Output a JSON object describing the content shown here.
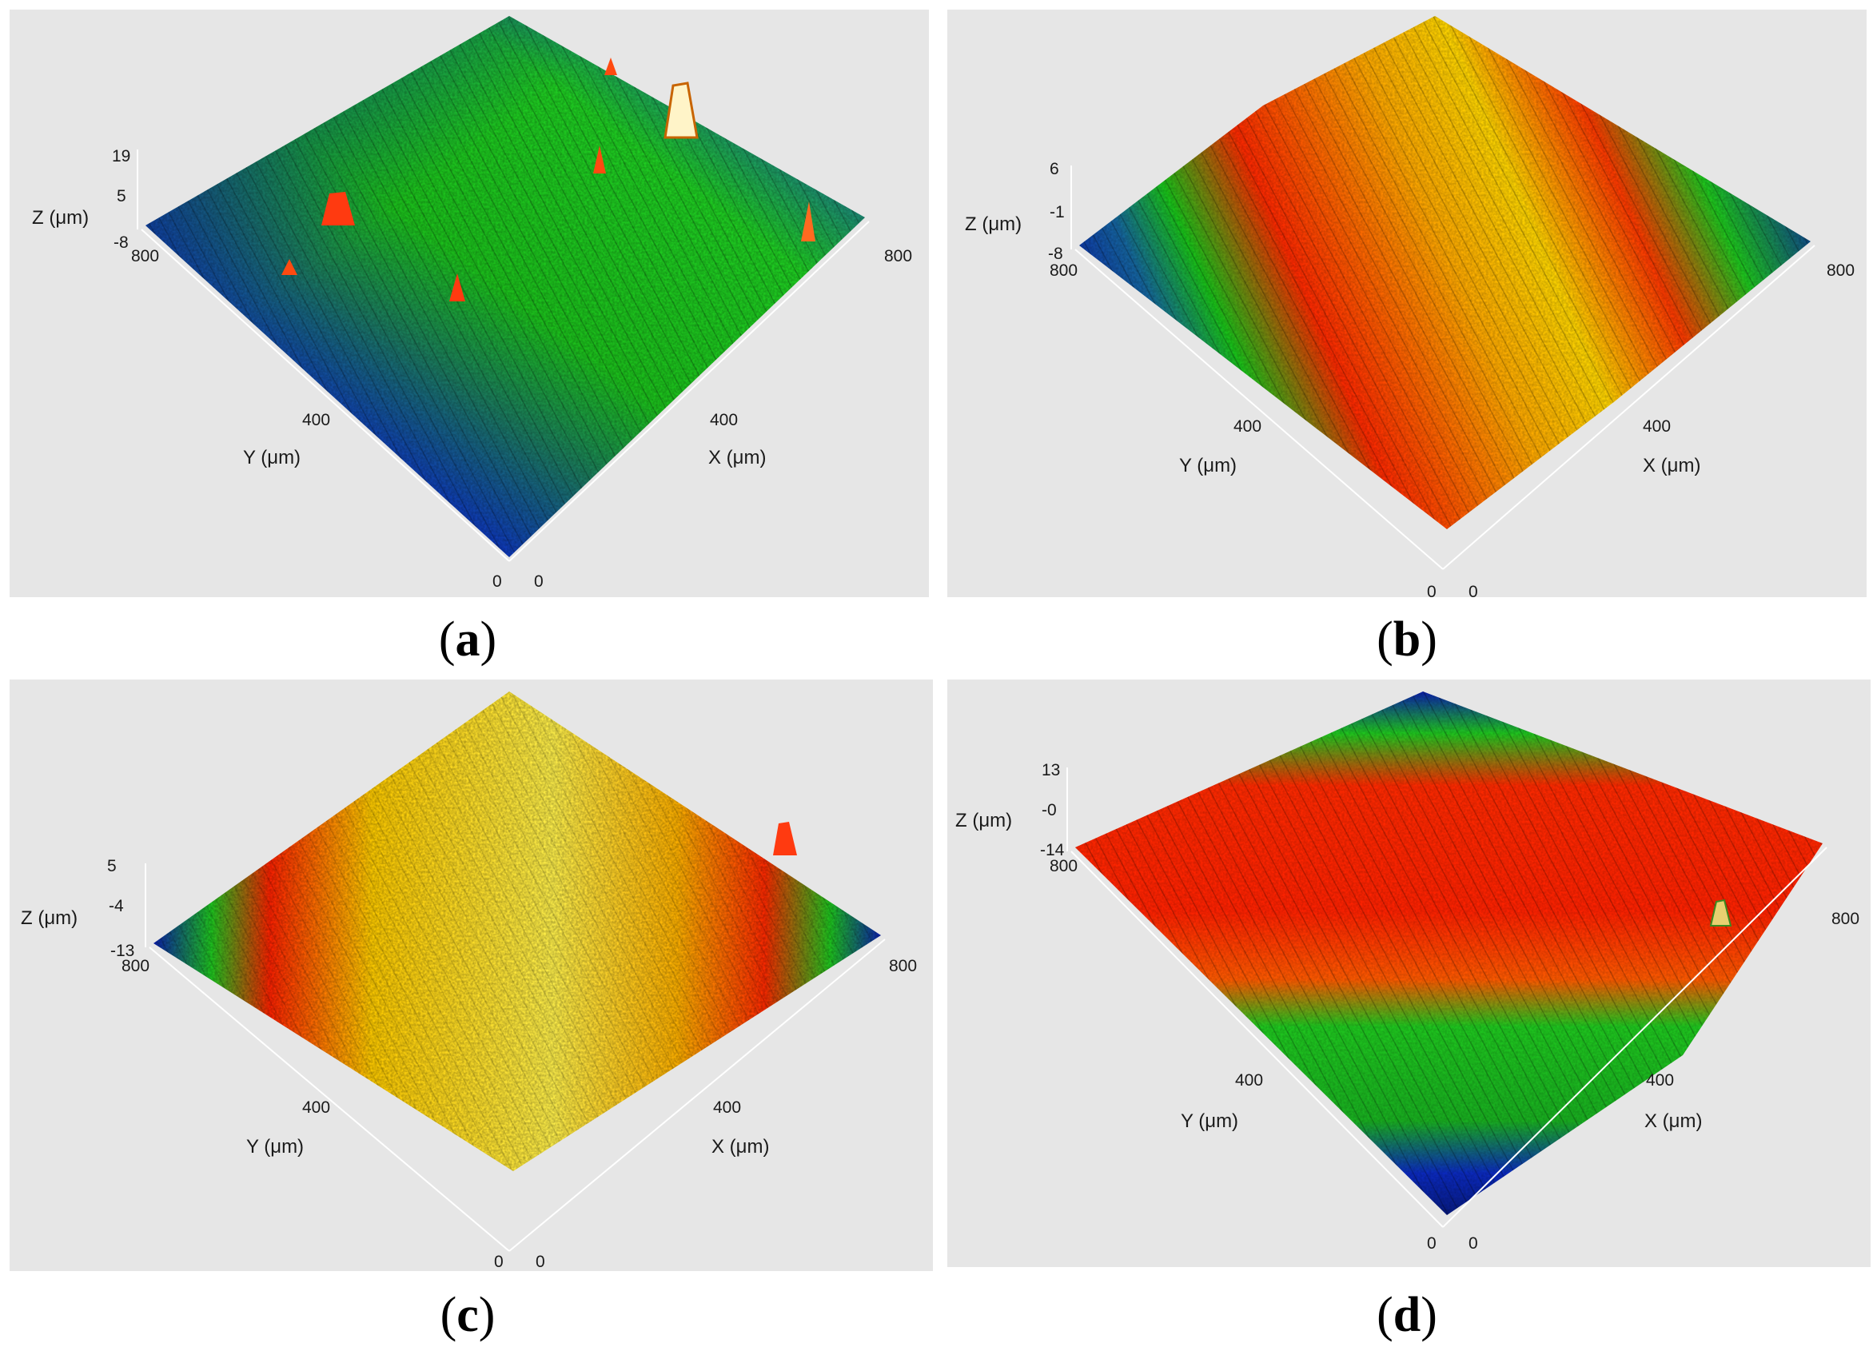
{
  "chart_data": [
    {
      "type": "surface3d",
      "panel_label": "a",
      "xlabel": "X (μm)",
      "ylabel": "Y (μm)",
      "zlabel": "Z (μm)",
      "x_ticks": [
        "0",
        "400",
        "800"
      ],
      "y_ticks": [
        "0",
        "400",
        "800"
      ],
      "z_ticks": [
        "19",
        "5",
        "-8"
      ],
      "xlim": [
        0,
        800
      ],
      "ylim": [
        0,
        800
      ],
      "zlim": [
        -8,
        19
      ],
      "colormap": [
        "#0b1fb0",
        "#18c418",
        "#ff2a00",
        "#ffe400"
      ]
    },
    {
      "type": "surface3d",
      "panel_label": "b",
      "xlabel": "X (μm)",
      "ylabel": "Y (μm)",
      "zlabel": "Z (μm)",
      "x_ticks": [
        "0",
        "400",
        "800"
      ],
      "y_ticks": [
        "0",
        "400",
        "800"
      ],
      "z_ticks": [
        "6",
        "-1",
        "-8"
      ],
      "xlim": [
        0,
        800
      ],
      "ylim": [
        0,
        800
      ],
      "zlim": [
        -8,
        6
      ],
      "colormap": [
        "#0b1fb0",
        "#18c418",
        "#ff2a00",
        "#ffe400"
      ]
    },
    {
      "type": "surface3d",
      "panel_label": "c",
      "xlabel": "X (μm)",
      "ylabel": "Y (μm)",
      "zlabel": "Z (μm)",
      "x_ticks": [
        "0",
        "400",
        "800"
      ],
      "y_ticks": [
        "0",
        "400",
        "800"
      ],
      "z_ticks": [
        "5",
        "-4",
        "-13"
      ],
      "xlim": [
        0,
        800
      ],
      "ylim": [
        0,
        800
      ],
      "zlim": [
        -13,
        5
      ],
      "colormap": [
        "#0b1fb0",
        "#18c418",
        "#ff2a00",
        "#ffe400"
      ]
    },
    {
      "type": "surface3d",
      "panel_label": "d",
      "xlabel": "X (μm)",
      "ylabel": "Y (μm)",
      "zlabel": "Z (μm)",
      "x_ticks": [
        "0",
        "400",
        "800"
      ],
      "y_ticks": [
        "0",
        "400",
        "800"
      ],
      "z_ticks": [
        "13",
        "-0",
        "-14"
      ],
      "xlim": [
        0,
        800
      ],
      "ylim": [
        0,
        800
      ],
      "zlim": [
        -14,
        13
      ],
      "colormap": [
        "#0b1fb0",
        "#18c418",
        "#ff2a00",
        "#ffe400"
      ]
    }
  ],
  "captions": [
    "a",
    "b",
    "c",
    "d"
  ]
}
